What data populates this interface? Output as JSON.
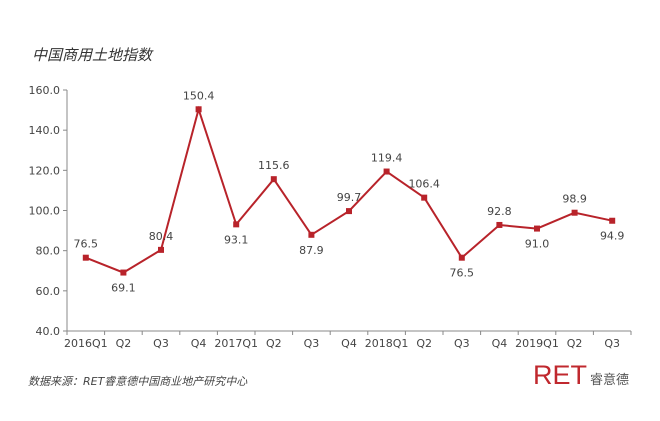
{
  "title": "中国商用土地指数",
  "source_note": "数据来源：RET睿意德中国商业地产研究中心",
  "brand": {
    "mark": "RET",
    "name_cn": "睿意德"
  },
  "colors": {
    "line": "#b8232a",
    "axis": "#888888",
    "text": "#444444",
    "brand": "#c0282e"
  },
  "chart_data": {
    "type": "line",
    "title": "中国商用土地指数",
    "categories": [
      "2016Q1",
      "Q2",
      "Q3",
      "Q4",
      "2017Q1",
      "Q2",
      "Q3",
      "Q4",
      "2018Q1",
      "Q2",
      "Q3",
      "Q4",
      "2019Q1",
      "Q2",
      "Q3"
    ],
    "series": [
      {
        "values": [
          76.5,
          69.1,
          80.4,
          150.4,
          93.1,
          115.6,
          87.9,
          99.7,
          119.4,
          106.4,
          76.5,
          92.8,
          91.0,
          98.9,
          94.9
        ]
      }
    ],
    "data_labels": [
      "76.5",
      "69.1",
      "80.4",
      "150.4",
      "93.1",
      "115.6",
      "87.9",
      "99.7",
      "119.4",
      "106.4",
      "76.5",
      "92.8",
      "91.0",
      "98.9",
      "94.9"
    ],
    "ylim": [
      40,
      160
    ],
    "yticks": [
      40,
      60,
      80,
      100,
      120,
      140,
      160
    ],
    "ytick_labels": [
      "40.0",
      "60.0",
      "80.0",
      "100.0",
      "120.0",
      "140.0",
      "160.0"
    ],
    "grid": false,
    "legend": "none",
    "xlabel": "",
    "ylabel": ""
  }
}
